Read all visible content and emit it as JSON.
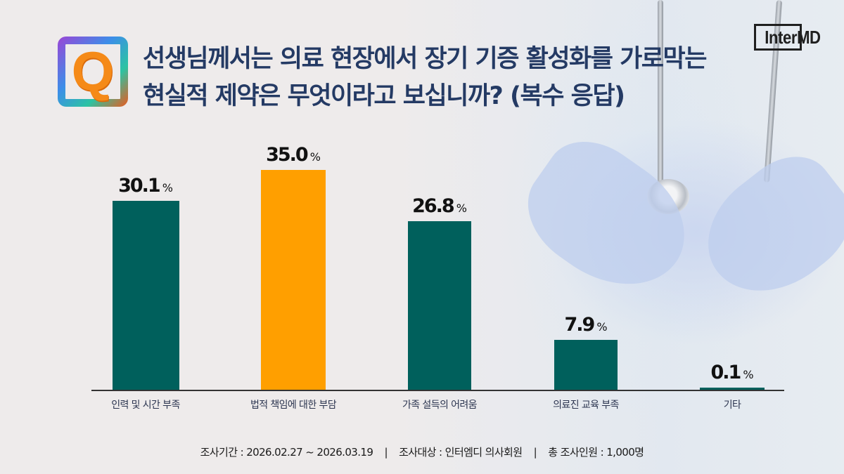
{
  "header": {
    "q_icon_letter": "Q",
    "title_line1": "선생님께서는 의료 현장에서 장기 기증 활성화를 가로막는",
    "title_line2": "현실적 제약은 무엇이라고 보십니까? (복수 응답)",
    "brand": "InterMD"
  },
  "colors": {
    "bar_default": "#00605c",
    "bar_highlight": "#ff9f00",
    "title": "#243a64",
    "baseline": "#333333"
  },
  "chart_data": {
    "type": "bar",
    "title": "선생님께서는 의료 현장에서 장기 기증 활성화를 가로막는 현실적 제약은 무엇이라고 보십니까? (복수 응답)",
    "categories": [
      "인력 및 시간 부족",
      "법적 책임에 대한 부담",
      "가족 설득의 어려움",
      "의료진 교육 부족",
      "기타"
    ],
    "values": [
      30.1,
      35.0,
      26.8,
      7.9,
      0.1
    ],
    "value_labels": [
      "30.1",
      "35.0",
      "26.8",
      "7.9",
      "0.1"
    ],
    "unit": "%",
    "highlight_index": 1,
    "xlabel": "",
    "ylabel": "",
    "ylim": [
      0,
      35
    ],
    "grid": false,
    "legend": false
  },
  "footer": {
    "period": "조사기간 : 2026.02.27 ~ 2026.03.19",
    "target": "조사대상 : 인터엠디 의사회원",
    "total": "총 조사인원 : 1,000명",
    "separator": "|"
  }
}
